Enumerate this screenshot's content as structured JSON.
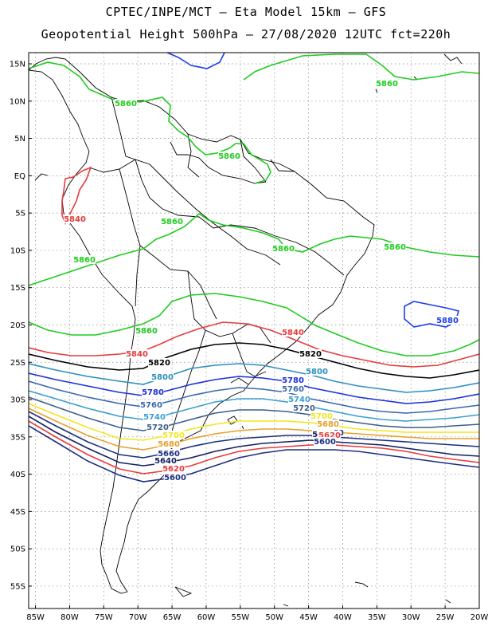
{
  "title": {
    "line1": "CPTEC/INPE/MCT –  Eta Model 15km – GFS",
    "line2": "Geopotential Height 500hPa – 27/08/2020 12UTC fct=220h"
  },
  "axes": {
    "lat_ticks": [
      "15N",
      "10N",
      "5N",
      "EQ",
      "5S",
      "10S",
      "15S",
      "20S",
      "25S",
      "30S",
      "35S",
      "40S",
      "45S",
      "50S",
      "55S"
    ],
    "lon_ticks": [
      "85W",
      "80W",
      "75W",
      "70W",
      "65W",
      "60W",
      "55W",
      "50W",
      "45W",
      "40W",
      "35W",
      "30W",
      "25W",
      "20W"
    ],
    "lat_values": [
      15,
      10,
      5,
      0,
      -5,
      -10,
      -15,
      -20,
      -25,
      -30,
      -35,
      -40,
      -45,
      -50,
      -55
    ],
    "lon_values": [
      -85,
      -80,
      -75,
      -70,
      -65,
      -60,
      -55,
      -50,
      -45,
      -40,
      -35,
      -30,
      -25,
      -20
    ],
    "lon_range": [
      -86,
      -20
    ],
    "lat_range": [
      -58,
      16.5
    ],
    "grid": "dotted"
  },
  "colors": {
    "5880": "#1e3ee6",
    "5860": "#1ecc1e",
    "5840": "#e63b3b",
    "5820": "#000000",
    "5800": "#2c8fbf",
    "5780": "#1c2fd6",
    "5760": "#3a67b0",
    "5740": "#3a9fd0",
    "5720": "#3a5f8a",
    "5700": "#f2e61c",
    "5680": "#e8a02a",
    "5660": "#1c2f80",
    "5640": "#102060",
    "5620": "#e63b3b",
    "5600": "#1c2f80",
    "coast": "#000000"
  },
  "contour_labels": [
    "5860",
    "5860",
    "5860",
    "5860",
    "5860",
    "5860",
    "5860",
    "5860",
    "5880",
    "5840",
    "5840",
    "5840",
    "5820",
    "5820",
    "5800",
    "5800",
    "5780",
    "5780",
    "5760",
    "5760",
    "5740",
    "5740",
    "5720",
    "5720",
    "5700",
    "5700",
    "5680",
    "5680",
    "5660",
    "5660",
    "5640",
    "5640",
    "5620",
    "5620",
    "5600",
    "5600"
  ]
}
